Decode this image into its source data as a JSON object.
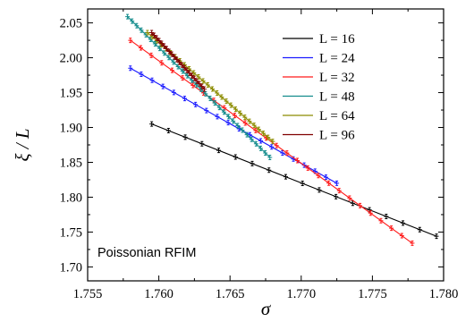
{
  "chart_data": {
    "type": "line",
    "xlabel": "σ",
    "ylabel": "ξ / L",
    "xlim": [
      1.755,
      1.78
    ],
    "ylim": [
      1.68,
      2.07
    ],
    "x_ticks": [
      "1.755",
      "1.760",
      "1.765",
      "1.770",
      "1.775",
      "1.780"
    ],
    "y_ticks": [
      "1.70",
      "1.75",
      "1.80",
      "1.85",
      "1.90",
      "1.95",
      "2.00",
      "2.05"
    ],
    "annotation": "Poissonian RFIM",
    "legend_position": "top-right",
    "legend_prefix": "L",
    "grid": false,
    "series": [
      {
        "name": "16",
        "label": "L = 16",
        "color": "#000000",
        "points": [
          [
            1.7595,
            1.905
          ],
          [
            1.7795,
            1.744
          ]
        ],
        "n_markers": 18
      },
      {
        "name": "24",
        "label": "L = 24",
        "color": "#1a1aff",
        "points": [
          [
            1.758,
            1.985
          ],
          [
            1.7725,
            1.82
          ]
        ],
        "n_markers": 20
      },
      {
        "name": "32",
        "label": "L = 32",
        "color": "#ff1a1a",
        "points": [
          [
            1.758,
            2.025
          ],
          [
            1.7778,
            1.734
          ]
        ],
        "n_markers": 28
      },
      {
        "name": "48",
        "label": "L = 48",
        "color": "#138c8c",
        "points": [
          [
            1.7578,
            2.059
          ],
          [
            1.7678,
            1.857
          ]
        ],
        "n_markers": 32
      },
      {
        "name": "64",
        "label": "L = 64",
        "color": "#8c8c00",
        "points": [
          [
            1.7592,
            2.036
          ],
          [
            1.768,
            1.88
          ]
        ],
        "n_markers": 28
      },
      {
        "name": "96",
        "label": "L = 96",
        "color": "#800000",
        "points": [
          [
            1.7595,
            2.036
          ],
          [
            1.7632,
            1.955
          ]
        ],
        "n_markers": 22
      }
    ]
  }
}
